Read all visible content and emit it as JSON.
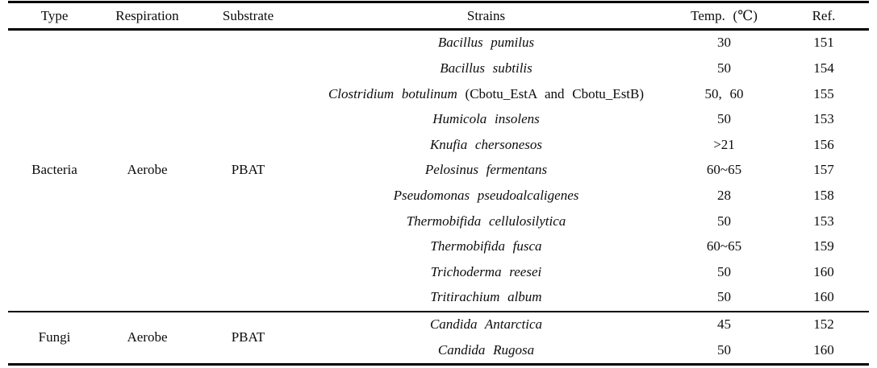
{
  "table": {
    "headers": [
      "Type",
      "Respiration",
      "Substrate",
      "Strains",
      "Temp. (℃)",
      "Ref."
    ],
    "groups": [
      {
        "type": "Bacteria",
        "respiration": "Aerobe",
        "substrate": "PBAT",
        "rows": [
          {
            "strain": "Bacillus pumilus",
            "note": "",
            "temp": "30",
            "ref": "151"
          },
          {
            "strain": "Bacillus subtilis",
            "note": "",
            "temp": "50",
            "ref": "154"
          },
          {
            "strain": "Clostridium botulinum",
            "note": "(Cbotu_EstA and Cbotu_EstB)",
            "temp": "50, 60",
            "ref": "155"
          },
          {
            "strain": "Humicola insolens",
            "note": "",
            "temp": "50",
            "ref": "153"
          },
          {
            "strain": "Knufia chersonesos",
            "note": "",
            "temp": ">21",
            "ref": "156"
          },
          {
            "strain": "Pelosinus fermentans",
            "note": "",
            "temp": "60~65",
            "ref": "157"
          },
          {
            "strain": "Pseudomonas pseudoalcaligenes",
            "note": "",
            "temp": "28",
            "ref": "158"
          },
          {
            "strain": "Thermobifida cellulosilytica",
            "note": "",
            "temp": "50",
            "ref": "153"
          },
          {
            "strain": "Thermobifida fusca",
            "note": "",
            "temp": "60~65",
            "ref": "159"
          },
          {
            "strain": "Trichoderma reesei",
            "note": "",
            "temp": "50",
            "ref": "160"
          },
          {
            "strain": "Tritirachium album",
            "note": "",
            "temp": "50",
            "ref": "160"
          }
        ]
      },
      {
        "type": "Fungi",
        "respiration": "Aerobe",
        "substrate": "PBAT",
        "rows": [
          {
            "strain": "Candida Antarctica",
            "note": "",
            "temp": "45",
            "ref": "152"
          },
          {
            "strain": "Candida Rugosa",
            "note": "",
            "temp": "50",
            "ref": "160"
          }
        ]
      }
    ]
  }
}
